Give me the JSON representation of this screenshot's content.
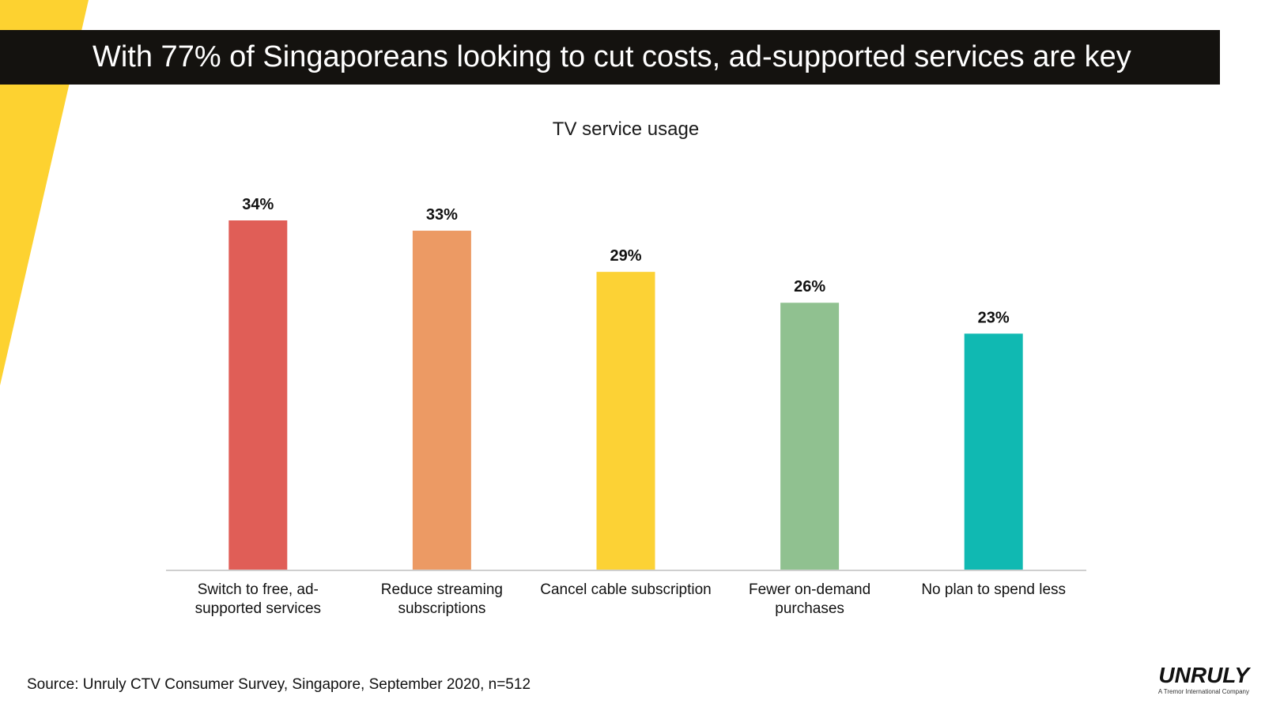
{
  "header": {
    "title": "With 77% of Singaporeans looking to cut costs, ad-supported services are key"
  },
  "chart_data": {
    "type": "bar",
    "title": "TV service usage",
    "categories": [
      [
        "Switch to free, ad-",
        "supported services"
      ],
      [
        "Reduce streaming",
        "subscriptions"
      ],
      [
        "Cancel cable subscription"
      ],
      [
        "Fewer on-demand",
        "purchases"
      ],
      [
        "No plan to spend less"
      ]
    ],
    "values": [
      34,
      33,
      29,
      26,
      23
    ],
    "value_labels": [
      "34%",
      "33%",
      "29%",
      "26%",
      "23%"
    ],
    "colors": [
      "#e05e57",
      "#ec9a64",
      "#fcd235",
      "#90c190",
      "#10b9b2"
    ],
    "ylim": [
      0,
      34
    ],
    "grid": false,
    "legend": "none"
  },
  "footer": {
    "source": "Source: Unruly CTV Consumer Survey, Singapore, September 2020, n=512"
  },
  "logo": {
    "name": "UNRULY",
    "tagline": "A Tremor International Company"
  },
  "colors": {
    "accent_yellow": "#fcd235",
    "header_bg": "#14120f"
  }
}
